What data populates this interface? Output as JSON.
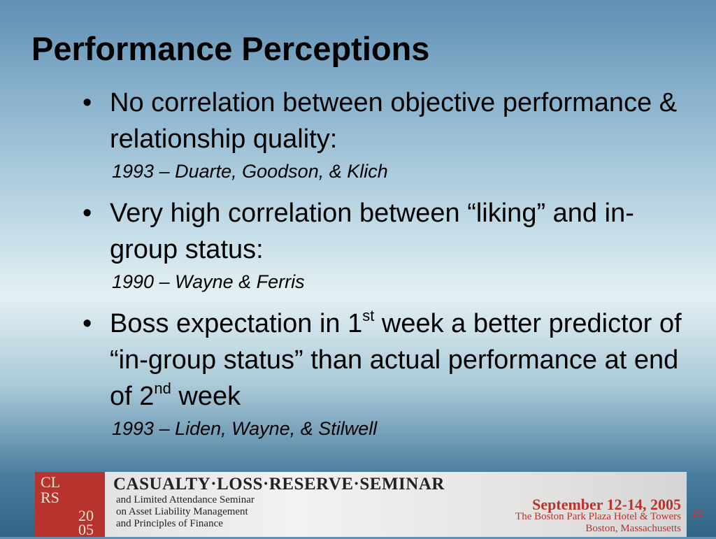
{
  "slide": {
    "title": "Performance Perceptions",
    "bullets": [
      {
        "parts": [
          {
            "text": "No correlation between objective performance & relationship quality:"
          }
        ],
        "citation": "1993 – Duarte, Goodson, & Klich"
      },
      {
        "parts": [
          {
            "text": "Very high correlation between “liking” and in-group status:"
          }
        ],
        "citation": "1990 – Wayne & Ferris"
      },
      {
        "parts": [
          {
            "text": "Boss expectation in 1"
          },
          {
            "text": "st",
            "sup": true
          },
          {
            "text": " week a better predictor of “in-group status” than actual performance at end of 2"
          },
          {
            "text": "nd",
            "sup": true
          },
          {
            "text": " week"
          }
        ],
        "citation": "1993 – Liden, Wayne, & Stilwell"
      }
    ],
    "page_number": "23"
  },
  "footer": {
    "logo": [
      "CL",
      "RS",
      "20",
      "05"
    ],
    "seminar": "CASUALTY·LOSS·RESERVE·SEMINAR",
    "subtitle_lines": [
      "and Limited Attendance Seminar",
      "on Asset Liability Management",
      "and Principles of Finance"
    ],
    "dates": "September 12-14, 2005",
    "venue": "The Boston Park Plaza Hotel & Towers",
    "city": "Boston, Massachusetts"
  }
}
